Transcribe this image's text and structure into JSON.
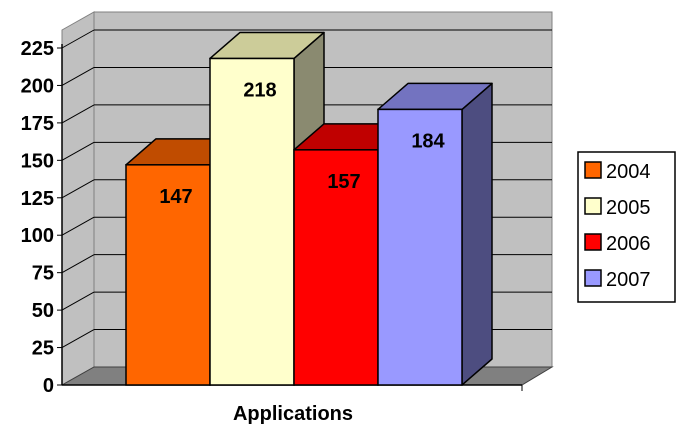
{
  "chart_data": {
    "type": "bar",
    "style": "3d-clustered-column",
    "categories": [
      "Applications"
    ],
    "xlabel": "Applications",
    "ylabel": "",
    "title": "",
    "ylim": [
      0,
      225
    ],
    "ytick_step": 25,
    "yticks": [
      "0",
      "25",
      "50",
      "75",
      "100",
      "125",
      "150",
      "175",
      "200",
      "225"
    ],
    "grid": true,
    "legend_position": "right",
    "show_data_labels": true,
    "series": [
      {
        "name": "2004",
        "values": [
          147
        ],
        "label": "147",
        "color": "#FF6600",
        "top_color": "#C04C00",
        "side_color": "#8A3700"
      },
      {
        "name": "2005",
        "values": [
          218
        ],
        "label": "218",
        "color": "#FFFFCC",
        "top_color": "#CCCC99",
        "side_color": "#8A8A70"
      },
      {
        "name": "2006",
        "values": [
          157
        ],
        "label": "157",
        "color": "#FF0000",
        "top_color": "#C00000",
        "side_color": "#800000"
      },
      {
        "name": "2007",
        "values": [
          184
        ],
        "label": "184",
        "color": "#9999FF",
        "top_color": "#7373C0",
        "side_color": "#4D4D80"
      }
    ],
    "colors": {
      "wall": "#C0C0C0",
      "floor": "#808080",
      "grid": "#000000",
      "axis": "#000000"
    }
  }
}
